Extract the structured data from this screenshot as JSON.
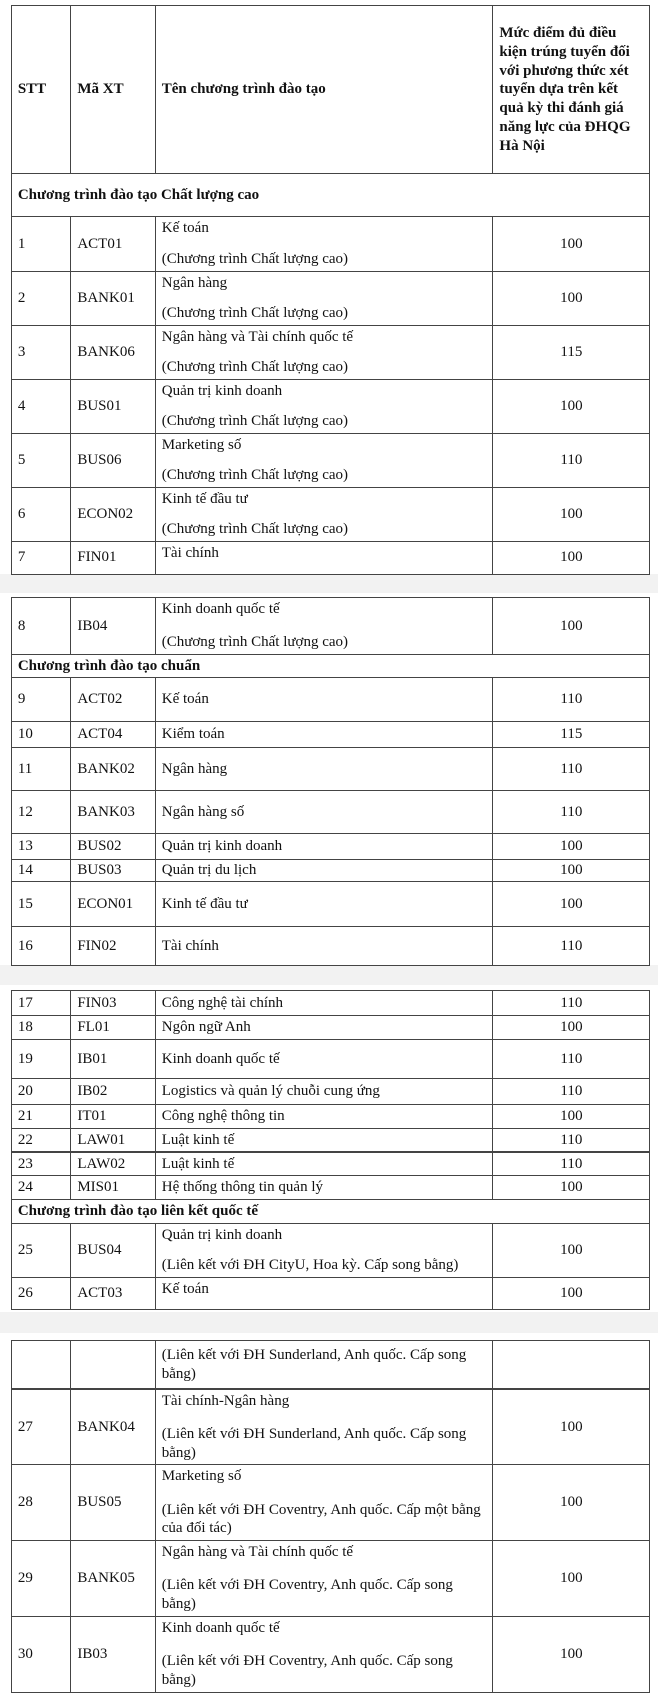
{
  "header": {
    "columns": [
      "STT",
      "Mã XT",
      "Tên chương trình đào tạo",
      "Mức điểm đủ điều kiện trúng tuyển đối với phương thức xét tuyển dựa trên kết quả kỳ thi đánh giá năng lực của ĐHQG Hà Nội"
    ]
  },
  "sections": [
    {
      "title": "Chương trình đào tạo Chất lượng cao",
      "rows": [
        {
          "stt": 1,
          "code": "ACT01",
          "name": "Kế toán",
          "note": "(Chương trình Chất lượng cao)",
          "score": 100
        },
        {
          "stt": 2,
          "code": "BANK01",
          "name": "Ngân hàng",
          "note": "(Chương trình Chất lượng cao)",
          "score": 100
        },
        {
          "stt": 3,
          "code": "BANK06",
          "name": "Ngân hàng và Tài chính quốc tế",
          "note": "(Chương trình Chất lượng cao)",
          "score": 115
        },
        {
          "stt": 4,
          "code": "BUS01",
          "name": "Quản trị kinh doanh",
          "note": "(Chương trình Chất lượng cao)",
          "score": 100
        },
        {
          "stt": 5,
          "code": "BUS06",
          "name": "Marketing số",
          "note": "(Chương trình Chất lượng cao)",
          "score": 110
        },
        {
          "stt": 6,
          "code": "ECON02",
          "name": "Kinh tế đầu tư",
          "note": "(Chương trình Chất lượng cao)",
          "score": 100
        },
        {
          "stt": 7,
          "code": "FIN01",
          "name": "Tài chính",
          "score": 100
        },
        {
          "stt": 8,
          "code": "IB04",
          "name": "Kinh doanh quốc tế",
          "note": "(Chương trình Chất lượng cao)",
          "score": 100
        }
      ]
    },
    {
      "title": "Chương trình đào tạo chuẩn",
      "rows": [
        {
          "stt": 9,
          "code": "ACT02",
          "name": "Kế toán",
          "score": 110
        },
        {
          "stt": 10,
          "code": "ACT04",
          "name": "Kiểm toán",
          "score": 115
        },
        {
          "stt": 11,
          "code": "BANK02",
          "name": "Ngân hàng",
          "score": 110
        },
        {
          "stt": 12,
          "code": "BANK03",
          "name": "Ngân hàng số",
          "score": 110
        },
        {
          "stt": 13,
          "code": "BUS02",
          "name": "Quản trị kinh doanh",
          "score": 100
        },
        {
          "stt": 14,
          "code": "BUS03",
          "name": "Quản trị du lịch",
          "score": 100
        },
        {
          "stt": 15,
          "code": "ECON01",
          "name": "Kinh tế đầu tư",
          "score": 100
        },
        {
          "stt": 16,
          "code": "FIN02",
          "name": "Tài chính",
          "score": 110
        },
        {
          "stt": 17,
          "code": "FIN03",
          "name": "Công nghệ tài chính",
          "score": 110
        },
        {
          "stt": 18,
          "code": "FL01",
          "name": "Ngôn ngữ Anh",
          "score": 100
        },
        {
          "stt": 19,
          "code": "IB01",
          "name": "Kinh doanh quốc tế",
          "score": 110
        },
        {
          "stt": 20,
          "code": "IB02",
          "name": "Logistics và quản lý chuỗi cung ứng",
          "score": 110
        },
        {
          "stt": 21,
          "code": "IT01",
          "name": "Công nghệ thông tin",
          "score": 100
        },
        {
          "stt": 22,
          "code": "LAW01",
          "name": "Luật kinh tế",
          "score": 110
        },
        {
          "stt": 23,
          "code": "LAW02",
          "name": "Luật kinh tế",
          "score": 110
        },
        {
          "stt": 24,
          "code": "MIS01",
          "name": "Hệ thống thông tin quản lý",
          "score": 100
        }
      ]
    },
    {
      "title": "Chương trình đào tạo liên kết quốc tế",
      "rows": [
        {
          "stt": 25,
          "code": "BUS04",
          "name": "Quản trị kinh doanh",
          "note": "(Liên kết với ĐH CityU, Hoa kỳ. Cấp song bằng)",
          "score": 100
        },
        {
          "stt": 26,
          "code": "ACT03",
          "name": "Kế toán",
          "note": "(Liên kết với ĐH Sunderland, Anh quốc. Cấp song bằng)",
          "score": 100
        },
        {
          "stt": 27,
          "code": "BANK04",
          "name": "Tài chính-Ngân hàng",
          "note": "(Liên kết với ĐH Sunderland, Anh quốc. Cấp song bằng)",
          "score": 100
        },
        {
          "stt": 28,
          "code": "BUS05",
          "name": "Marketing số",
          "note": "(Liên kết với ĐH Coventry, Anh quốc. Cấp một bằng của đối tác)",
          "score": 100
        },
        {
          "stt": 29,
          "code": "BANK05",
          "name": "Ngân hàng và Tài chính quốc tế",
          "note": "(Liên kết với ĐH Coventry, Anh quốc. Cấp song bằng)",
          "score": 100
        },
        {
          "stt": 30,
          "code": "IB03",
          "name": "Kinh doanh quốc tế",
          "note": "(Liên kết với ĐH Coventry, Anh quốc. Cấp song bằng)",
          "score": 100
        }
      ]
    }
  ]
}
